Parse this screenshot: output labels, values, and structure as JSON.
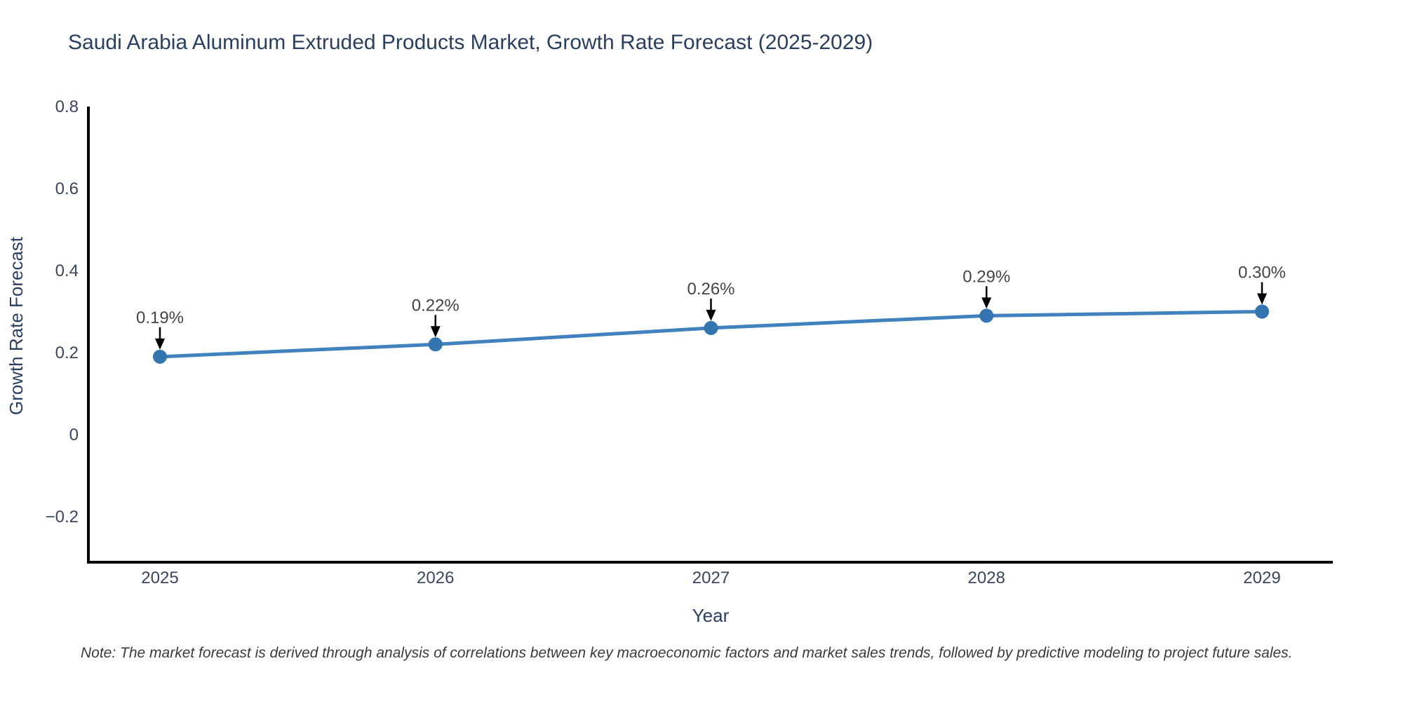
{
  "note": "Note: The market forecast is derived through analysis of correlations between key macroeconomic factors and market sales trends, followed by predictive modeling to project future sales.",
  "chart_data": {
    "type": "line",
    "title": "Saudi Arabia Aluminum Extruded Products Market, Growth Rate Forecast (2025-2029)",
    "xlabel": "Year",
    "ylabel": "Growth Rate Forecast",
    "categories": [
      "2025",
      "2026",
      "2027",
      "2028",
      "2029"
    ],
    "series": [
      {
        "name": "Growth Rate Forecast",
        "values": [
          0.19,
          0.22,
          0.26,
          0.29,
          0.3
        ],
        "point_labels": [
          "0.19%",
          "0.22%",
          "0.26%",
          "0.29%",
          "0.30%"
        ]
      }
    ],
    "yticks": [
      -0.2,
      0,
      0.2,
      0.4,
      0.6,
      0.8
    ],
    "ytick_labels": [
      "−0.2",
      "0",
      "0.2",
      "0.4",
      "0.6",
      "0.8"
    ],
    "ylim": [
      -0.311,
      0.8
    ],
    "grid": false,
    "legend_position": "none",
    "annotation_style": "value labels above points with black down arrows",
    "colors": {
      "line": "#4081be",
      "marker": "#3474b0",
      "axis": "#000000",
      "title_text": "#2a3f5f",
      "tick_text": "#39465c",
      "annotation_text": "#444444",
      "arrow": "#000000",
      "background": "#ffffff"
    }
  }
}
